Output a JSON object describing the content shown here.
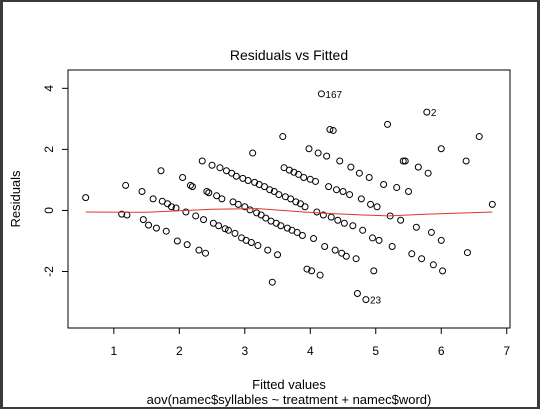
{
  "chart_data": {
    "type": "scatter",
    "title": "Residuals vs Fitted",
    "xlabel": "Fitted values",
    "subtitle": "aov(namec$syllables ~ treatment + namec$word)",
    "ylabel": "Residuals",
    "xlim": [
      0.3,
      7.05
    ],
    "ylim": [
      -3.85,
      4.6
    ],
    "xticks": [
      "1",
      "2",
      "3",
      "4",
      "5",
      "6",
      "7"
    ],
    "yticks": [
      "-2",
      "0",
      "2",
      "4"
    ],
    "grid": false,
    "point_symbol": "open-circle",
    "smooth_color": "#e0352b",
    "points": [
      [
        0.57,
        0.42
      ],
      [
        1.12,
        -0.12
      ],
      [
        1.2,
        -0.15
      ],
      [
        1.18,
        0.82
      ],
      [
        1.43,
        0.62
      ],
      [
        1.45,
        -0.3
      ],
      [
        1.53,
        -0.48
      ],
      [
        1.6,
        0.38
      ],
      [
        1.65,
        -0.58
      ],
      [
        1.72,
        1.3
      ],
      [
        1.74,
        0.3
      ],
      [
        1.8,
        -0.68
      ],
      [
        1.82,
        0.22
      ],
      [
        1.88,
        0.12
      ],
      [
        1.95,
        0.08
      ],
      [
        1.97,
        -1.0
      ],
      [
        2.05,
        1.08
      ],
      [
        2.1,
        -0.05
      ],
      [
        2.12,
        -1.12
      ],
      [
        2.17,
        0.82
      ],
      [
        2.2,
        0.78
      ],
      [
        2.25,
        -0.18
      ],
      [
        2.3,
        -1.3
      ],
      [
        2.35,
        1.62
      ],
      [
        2.37,
        -0.3
      ],
      [
        2.4,
        -1.4
      ],
      [
        2.42,
        0.62
      ],
      [
        2.45,
        0.58
      ],
      [
        2.5,
        1.48
      ],
      [
        2.52,
        -0.42
      ],
      [
        2.57,
        0.48
      ],
      [
        2.6,
        -0.5
      ],
      [
        2.62,
        1.4
      ],
      [
        2.65,
        0.38
      ],
      [
        2.7,
        -0.6
      ],
      [
        2.72,
        1.3
      ],
      [
        2.75,
        -0.65
      ],
      [
        2.8,
        1.22
      ],
      [
        2.82,
        0.28
      ],
      [
        2.85,
        -0.75
      ],
      [
        2.87,
        1.12
      ],
      [
        2.9,
        0.2
      ],
      [
        2.95,
        -0.9
      ],
      [
        2.97,
        1.05
      ],
      [
        3.0,
        0.12
      ],
      [
        3.02,
        -0.98
      ],
      [
        3.05,
        0.98
      ],
      [
        3.08,
        0.02
      ],
      [
        3.1,
        -1.05
      ],
      [
        3.12,
        1.88
      ],
      [
        3.15,
        0.92
      ],
      [
        3.18,
        -0.08
      ],
      [
        3.2,
        -1.15
      ],
      [
        3.22,
        0.85
      ],
      [
        3.25,
        -0.15
      ],
      [
        3.3,
        0.78
      ],
      [
        3.32,
        -0.25
      ],
      [
        3.35,
        -1.3
      ],
      [
        3.38,
        0.68
      ],
      [
        3.4,
        -0.35
      ],
      [
        3.42,
        -2.35
      ],
      [
        3.45,
        0.62
      ],
      [
        3.48,
        -0.42
      ],
      [
        3.5,
        -1.45
      ],
      [
        3.52,
        0.52
      ],
      [
        3.55,
        -0.5
      ],
      [
        3.58,
        2.42
      ],
      [
        3.6,
        1.4
      ],
      [
        3.62,
        0.45
      ],
      [
        3.65,
        -0.58
      ],
      [
        3.68,
        1.32
      ],
      [
        3.7,
        0.38
      ],
      [
        3.72,
        -0.65
      ],
      [
        3.75,
        1.25
      ],
      [
        3.78,
        0.28
      ],
      [
        3.8,
        -0.72
      ],
      [
        3.82,
        1.18
      ],
      [
        3.85,
        0.22
      ],
      [
        3.88,
        -0.82
      ],
      [
        3.9,
        1.08
      ],
      [
        3.92,
        0.12
      ],
      [
        3.95,
        -1.92
      ],
      [
        3.98,
        2.02
      ],
      [
        4.0,
        1.02
      ],
      [
        4.02,
        -1.98
      ],
      [
        4.05,
        -0.92
      ],
      [
        4.08,
        0.95
      ],
      [
        4.1,
        -0.05
      ],
      [
        4.12,
        1.88
      ],
      [
        4.15,
        -2.12
      ],
      [
        4.17,
        3.82
      ],
      [
        4.2,
        -0.15
      ],
      [
        4.22,
        -1.18
      ],
      [
        4.25,
        1.78
      ],
      [
        4.28,
        0.78
      ],
      [
        4.3,
        2.65
      ],
      [
        4.32,
        -0.22
      ],
      [
        4.35,
        2.62
      ],
      [
        4.38,
        -1.3
      ],
      [
        4.4,
        0.68
      ],
      [
        4.42,
        -0.32
      ],
      [
        4.45,
        1.62
      ],
      [
        4.48,
        -1.4
      ],
      [
        4.5,
        0.62
      ],
      [
        4.52,
        -0.42
      ],
      [
        4.55,
        -1.5
      ],
      [
        4.6,
        0.52
      ],
      [
        4.62,
        1.42
      ],
      [
        4.65,
        -0.5
      ],
      [
        4.7,
        -1.58
      ],
      [
        4.72,
        -2.72
      ],
      [
        4.75,
        1.22
      ],
      [
        4.78,
        0.38
      ],
      [
        4.8,
        -0.65
      ],
      [
        4.85,
        -2.92
      ],
      [
        4.9,
        1.08
      ],
      [
        4.92,
        0.2
      ],
      [
        4.95,
        -0.9
      ],
      [
        4.97,
        -1.98
      ],
      [
        5.02,
        0.12
      ],
      [
        5.05,
        -0.98
      ],
      [
        5.12,
        0.85
      ],
      [
        5.18,
        2.82
      ],
      [
        5.22,
        -0.18
      ],
      [
        5.25,
        -1.18
      ],
      [
        5.32,
        0.75
      ],
      [
        5.38,
        -0.32
      ],
      [
        5.42,
        1.62
      ],
      [
        5.45,
        1.62
      ],
      [
        5.5,
        0.62
      ],
      [
        5.55,
        -1.42
      ],
      [
        5.62,
        -0.55
      ],
      [
        5.65,
        1.42
      ],
      [
        5.7,
        -1.58
      ],
      [
        5.78,
        3.22
      ],
      [
        5.8,
        1.22
      ],
      [
        5.85,
        -0.72
      ],
      [
        5.88,
        -1.78
      ],
      [
        6.0,
        2.02
      ],
      [
        6.0,
        -0.98
      ],
      [
        6.02,
        -1.98
      ],
      [
        6.38,
        1.62
      ],
      [
        6.4,
        -1.38
      ],
      [
        6.58,
        2.42
      ],
      [
        6.78,
        0.2
      ]
    ],
    "labeled_points": [
      {
        "label": "167",
        "x": 4.17,
        "y": 3.82
      },
      {
        "label": "2",
        "x": 5.78,
        "y": 3.22
      },
      {
        "label": "23",
        "x": 4.85,
        "y": -2.92
      }
    ],
    "smooth": [
      [
        0.57,
        -0.05
      ],
      [
        1.5,
        -0.06
      ],
      [
        2.5,
        0.04
      ],
      [
        3.2,
        0.06
      ],
      [
        3.9,
        -0.05
      ],
      [
        4.3,
        -0.1
      ],
      [
        4.8,
        -0.15
      ],
      [
        5.2,
        -0.18
      ],
      [
        5.8,
        -0.12
      ],
      [
        6.4,
        -0.08
      ],
      [
        6.78,
        -0.05
      ]
    ]
  }
}
